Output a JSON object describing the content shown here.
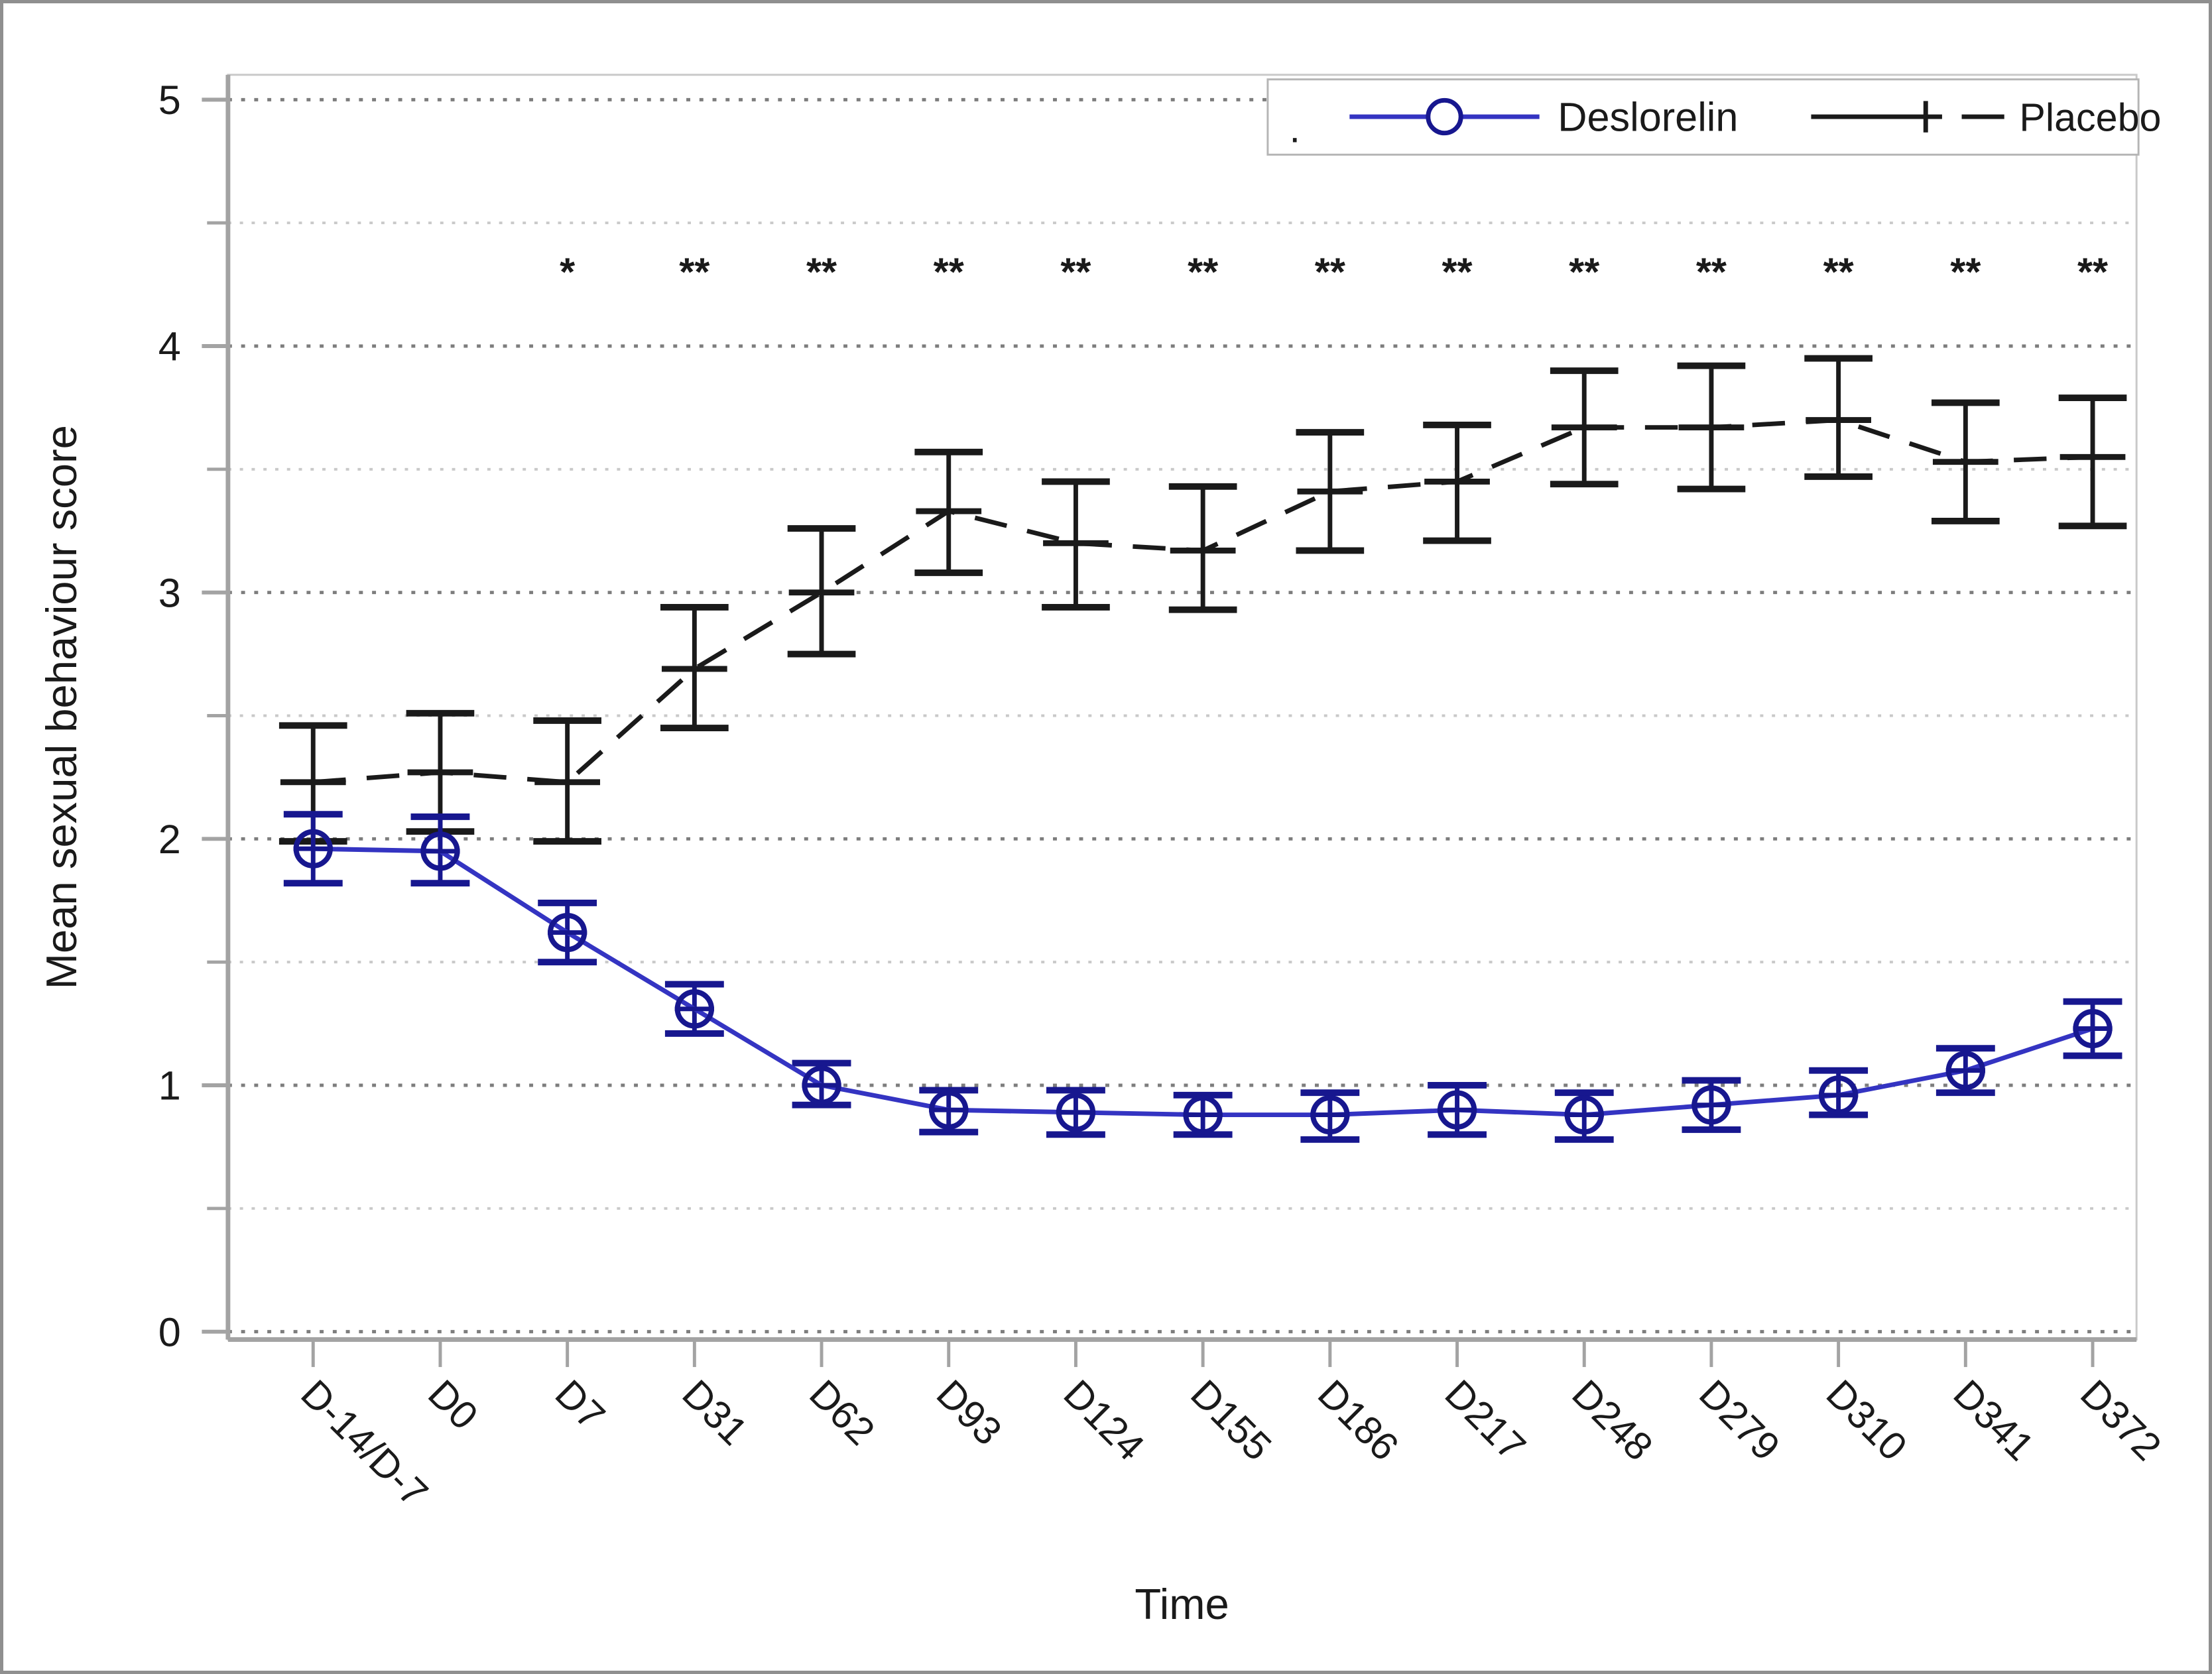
{
  "figure": {
    "background": "#ffffff",
    "border_color": "#8f8f8f"
  },
  "chart_data": {
    "type": "line",
    "title": "",
    "xlabel": "Time",
    "ylabel": "Mean sexual behaviour score",
    "ylim": [
      0,
      5
    ],
    "y_major_ticks": [
      0,
      1,
      2,
      3,
      4,
      5
    ],
    "y_minor_ticks": [
      0.5,
      1.5,
      2.5,
      3.5,
      4.5
    ],
    "grid": "horizontal dotted, major dark / minor light",
    "legend_position": "top-right",
    "categories": [
      "D-14/D-7",
      "D0",
      "D7",
      "D31",
      "D62",
      "D93",
      "D124",
      "D155",
      "D186",
      "D217",
      "D248",
      "D279",
      "D310",
      "D341",
      "D372"
    ],
    "series": [
      {
        "name": "Placebo",
        "marker": "plus",
        "line_style": "dashed",
        "color": "#1a1a1a",
        "values": [
          2.23,
          2.27,
          2.23,
          2.69,
          3.0,
          3.33,
          3.2,
          3.17,
          3.41,
          3.45,
          3.67,
          3.67,
          3.7,
          3.53,
          3.55
        ],
        "err_low": [
          1.99,
          2.03,
          1.99,
          2.45,
          2.75,
          3.08,
          2.94,
          2.93,
          3.17,
          3.21,
          3.44,
          3.42,
          3.47,
          3.29,
          3.27
        ],
        "err_high": [
          2.46,
          2.51,
          2.48,
          2.94,
          3.26,
          3.57,
          3.45,
          3.43,
          3.65,
          3.68,
          3.9,
          3.92,
          3.95,
          3.77,
          3.79
        ]
      },
      {
        "name": "Deslorelin",
        "marker": "circle-plus",
        "line_style": "solid",
        "color": "#3434c2",
        "marker_color": "#17178f",
        "values": [
          1.96,
          1.95,
          1.62,
          1.31,
          1.0,
          0.9,
          0.89,
          0.88,
          0.88,
          0.9,
          0.88,
          0.92,
          0.96,
          1.06,
          1.23
        ],
        "err_low": [
          1.82,
          1.82,
          1.5,
          1.21,
          0.92,
          0.81,
          0.8,
          0.8,
          0.78,
          0.8,
          0.78,
          0.82,
          0.88,
          0.97,
          1.12
        ],
        "err_high": [
          2.1,
          2.09,
          1.74,
          1.41,
          1.09,
          0.98,
          0.98,
          0.96,
          0.97,
          1.0,
          0.97,
          1.02,
          1.06,
          1.15,
          1.34
        ]
      }
    ],
    "significance": {
      "y": 4.3,
      "labels": [
        "",
        "",
        "*",
        "**",
        "**",
        "**",
        "**",
        "**",
        "**",
        "**",
        "**",
        "**",
        "**",
        "**",
        "**"
      ]
    },
    "legend": {
      "note": ".",
      "entries": [
        "Deslorelin",
        "Placebo"
      ]
    },
    "colors": {
      "axis": "#a3a3a3",
      "plot_border": "#c9c9c9",
      "grid_major": "#7d7d7d",
      "grid_minor": "#c9c9c9",
      "text": "#1a1a1a",
      "legend_border": "#b5b5b5"
    }
  }
}
